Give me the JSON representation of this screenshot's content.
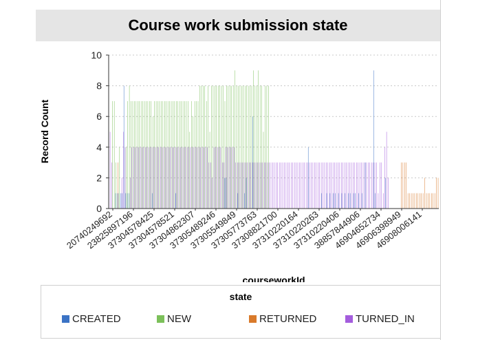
{
  "chart_data": {
    "type": "bar",
    "title": "Course work submission state",
    "xlabel": "courseworkId",
    "ylabel": "Record Count",
    "ylim": [
      0,
      10
    ],
    "yticks": [
      0,
      2,
      4,
      6,
      8,
      10
    ],
    "x_tick_labels": [
      "20740249692",
      "23825897196",
      "37304578425",
      "37304578521",
      "37304862307",
      "37305489246",
      "37305549849",
      "37305773763",
      "37308821700",
      "37310220164",
      "37310220263",
      "37310220406",
      "38857844906",
      "46904652734",
      "46906398949",
      "46908006141"
    ],
    "grid": true,
    "legend": {
      "title": "state",
      "placement": "bottom"
    },
    "series": [
      {
        "name": "CREATED",
        "color": "#3b73c5",
        "values": [
          0,
          0,
          0,
          0,
          1,
          1,
          1,
          1,
          1,
          8,
          1,
          1,
          1,
          0,
          0,
          0,
          0,
          0,
          0,
          0,
          0,
          0,
          0,
          0,
          0,
          0,
          1,
          0,
          0,
          0,
          0,
          0,
          0,
          0,
          0,
          0,
          0,
          0,
          0,
          0,
          1,
          0,
          0,
          0,
          0,
          0,
          0,
          0,
          0,
          0,
          0,
          0,
          0,
          0,
          0,
          0,
          0,
          0,
          0,
          0,
          0,
          0,
          0,
          0,
          0,
          0,
          0,
          0,
          0,
          2,
          2,
          0,
          0,
          0,
          0,
          0,
          0,
          1,
          0,
          0,
          0,
          1,
          2,
          0,
          0,
          0,
          6,
          0,
          0,
          0,
          0,
          0,
          0,
          0,
          0,
          0,
          0,
          0,
          0,
          0,
          0,
          0,
          0,
          0,
          0,
          0,
          0,
          0,
          0,
          0,
          0,
          0,
          0,
          0,
          0,
          0,
          0,
          0,
          0,
          4,
          0,
          0,
          0,
          0,
          0,
          0,
          0,
          1,
          0,
          0,
          1,
          0,
          1,
          0,
          1,
          1,
          0,
          1,
          0,
          1,
          0,
          1,
          0,
          1,
          1,
          0,
          1,
          1,
          0,
          1,
          0,
          1,
          0,
          3,
          0,
          0,
          0,
          0,
          9,
          1,
          0,
          0,
          0,
          0,
          0,
          2,
          0,
          0,
          0,
          0,
          0,
          0,
          0,
          0,
          0,
          0,
          0,
          0,
          0,
          0,
          0,
          0,
          0,
          0,
          0,
          0,
          0,
          0,
          0,
          0,
          0,
          0,
          0,
          0,
          0,
          0,
          0
        ]
      },
      {
        "name": "NEW",
        "color": "#7cc05a",
        "values": [
          0,
          0,
          7,
          7,
          3,
          0,
          4,
          0,
          0,
          0,
          4,
          7,
          8,
          7,
          7,
          7,
          7,
          7,
          7,
          7,
          7,
          7,
          7,
          7,
          7,
          7,
          6,
          7,
          7,
          7,
          7,
          7,
          7,
          7,
          7,
          7,
          7,
          7,
          7,
          7,
          7,
          7,
          7,
          7,
          7,
          7,
          7,
          7,
          5,
          7,
          6,
          7,
          7,
          7,
          8,
          8,
          8,
          8,
          7,
          8,
          5,
          8,
          8,
          8,
          8,
          8,
          8,
          8,
          8,
          7,
          8,
          8,
          8,
          8,
          8,
          9,
          8,
          8,
          8,
          8,
          8,
          8,
          8,
          8,
          8,
          8,
          9,
          8,
          8,
          9,
          8,
          8,
          5,
          8,
          8,
          8,
          0,
          0,
          0,
          0,
          0,
          0,
          0,
          0,
          0,
          0,
          0,
          0,
          0,
          0,
          0,
          0,
          0,
          0,
          0,
          0,
          0,
          0,
          0,
          0,
          0,
          0,
          0,
          0,
          0,
          0,
          0,
          0,
          0,
          0,
          0,
          0,
          0,
          0,
          0,
          0,
          0,
          0,
          0,
          0,
          0,
          0,
          0,
          0,
          0,
          0,
          0,
          0,
          0,
          0,
          0,
          0,
          0,
          0,
          0,
          0,
          0,
          0,
          0,
          0,
          0,
          0,
          0,
          0,
          0,
          0,
          0,
          0,
          0,
          0,
          0,
          0,
          0,
          0,
          0,
          0,
          0,
          0,
          0,
          0,
          0,
          0,
          0,
          0,
          0,
          0,
          0,
          0,
          0,
          0,
          0,
          0,
          0
        ]
      },
      {
        "name": "RETURNED",
        "color": "#d97a2b",
        "values": [
          0,
          0,
          0,
          0,
          0,
          3,
          0,
          0,
          0,
          0,
          0,
          0,
          0,
          0,
          0,
          0,
          0,
          0,
          0,
          0,
          0,
          0,
          0,
          0,
          0,
          0,
          0,
          0,
          0,
          0,
          0,
          0,
          0,
          0,
          0,
          0,
          0,
          0,
          0,
          0,
          0,
          0,
          0,
          0,
          0,
          0,
          0,
          0,
          0,
          0,
          0,
          0,
          0,
          0,
          0,
          0,
          0,
          0,
          0,
          0,
          0,
          0,
          0,
          0,
          0,
          0,
          0,
          0,
          0,
          0,
          0,
          0,
          0,
          0,
          0,
          0,
          0,
          0,
          0,
          0,
          0,
          0,
          0,
          0,
          0,
          0,
          0,
          0,
          0,
          0,
          0,
          0,
          0,
          0,
          0,
          0,
          0,
          0,
          0,
          0,
          0,
          0,
          0,
          0,
          0,
          0,
          0,
          0,
          0,
          0,
          0,
          0,
          0,
          0,
          0,
          0,
          0,
          0,
          0,
          0,
          0,
          0,
          0,
          0,
          0,
          0,
          0,
          0,
          0,
          0,
          0,
          0,
          0,
          0,
          0,
          0,
          0,
          0,
          0,
          0,
          0,
          0,
          0,
          0,
          0,
          0,
          0,
          0,
          0,
          0,
          0,
          0,
          0,
          0,
          0,
          0,
          0,
          0,
          0,
          0,
          0,
          0,
          0,
          0,
          0,
          0,
          0,
          0,
          0,
          0,
          0,
          0,
          0,
          0,
          3,
          3,
          3,
          3,
          1,
          1,
          1,
          1,
          1,
          1,
          1,
          1,
          1,
          1,
          2,
          1,
          1,
          1,
          1,
          1,
          1,
          2,
          2
        ]
      },
      {
        "name": "TURNED_IN",
        "color": "#a45ddd",
        "values": [
          5,
          3,
          0,
          0,
          0,
          0,
          0,
          2,
          5,
          4,
          0,
          0,
          2,
          4,
          4,
          4,
          4,
          4,
          4,
          4,
          4,
          4,
          4,
          4,
          4,
          4,
          4,
          4,
          4,
          4,
          4,
          4,
          4,
          4,
          4,
          4,
          4,
          4,
          4,
          4,
          4,
          4,
          4,
          4,
          4,
          4,
          4,
          4,
          4,
          4,
          4,
          4,
          4,
          4,
          4,
          4,
          4,
          4,
          4,
          3,
          3,
          2,
          4,
          4,
          4,
          4,
          4,
          3,
          3,
          4,
          4,
          4,
          4,
          4,
          4,
          3,
          3,
          3,
          3,
          3,
          3,
          3,
          3,
          3,
          3,
          3,
          3,
          3,
          3,
          3,
          3,
          3,
          3,
          3,
          3,
          3,
          3,
          3,
          3,
          3,
          3,
          3,
          3,
          3,
          3,
          3,
          3,
          3,
          3,
          3,
          3,
          3,
          3,
          3,
          3,
          3,
          3,
          3,
          3,
          3,
          3,
          3,
          3,
          3,
          3,
          3,
          3,
          3,
          3,
          3,
          3,
          3,
          3,
          3,
          3,
          3,
          3,
          3,
          3,
          3,
          3,
          3,
          3,
          3,
          3,
          3,
          3,
          3,
          3,
          3,
          3,
          3,
          3,
          3,
          3,
          3,
          3,
          3,
          3,
          3,
          1,
          3,
          3,
          1,
          4,
          5,
          2,
          0,
          0,
          0,
          0,
          0,
          0,
          0,
          0,
          0,
          0,
          0,
          0,
          0,
          0,
          0,
          0,
          0,
          0,
          0,
          0,
          0,
          0,
          0,
          0,
          0,
          0
        ]
      }
    ]
  }
}
